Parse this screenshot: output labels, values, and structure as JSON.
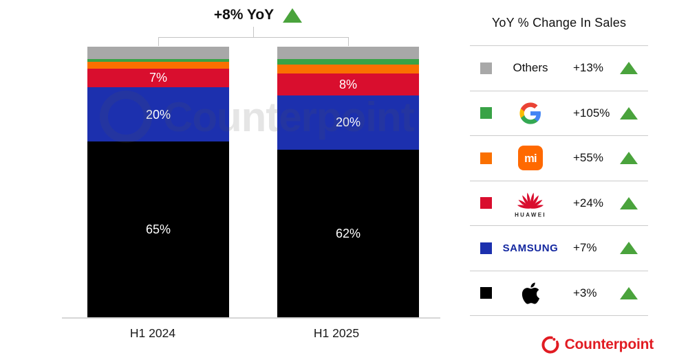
{
  "header": {
    "growth_label": "+8% YoY",
    "growth_direction": "up"
  },
  "watermark": {
    "text": "Counterpoint"
  },
  "footer": {
    "brand": "Counterpoint"
  },
  "colors": {
    "up_green": "#4aa33c",
    "bracket_line": "#c4c4c4",
    "counterpoint_red": "#e11b22",
    "samsung_blue": "#1428a0",
    "huawei_red": "#d90e2e",
    "mi_orange": "#ff6900",
    "google_blue": "#4285F4",
    "google_green": "#34A853",
    "google_yellow": "#FBBC05",
    "google_red": "#EA4335"
  },
  "legend": {
    "title": "YoY % Change In Sales",
    "rows": [
      {
        "brand": "Others",
        "change": "+13%",
        "direction": "up",
        "series": "Others"
      },
      {
        "brand": "Google",
        "change": "+105%",
        "direction": "up",
        "series": "Google"
      },
      {
        "brand": "Xiaomi",
        "change": "+55%",
        "direction": "up",
        "series": "Xiaomi",
        "logo_text": "mi"
      },
      {
        "brand": "Huawei",
        "change": "+24%",
        "direction": "up",
        "series": "Huawei",
        "wordmark": "HUAWEI"
      },
      {
        "brand": "Samsung",
        "change": "+7%",
        "direction": "up",
        "series": "Samsung",
        "wordmark": "SAMSUNG"
      },
      {
        "brand": "Apple",
        "change": "+3%",
        "direction": "up",
        "series": "Apple"
      }
    ]
  },
  "chart_data": {
    "type": "bar",
    "stacked": true,
    "title": "+8% YoY",
    "unit": "% share of sales",
    "categories": [
      "H1 2024",
      "H1 2025"
    ],
    "ylim": [
      0,
      100
    ],
    "legend_position": "right",
    "grid": false,
    "series": [
      {
        "name": "Apple",
        "color": "#000000",
        "values": [
          65,
          62
        ],
        "labels": [
          "65%",
          "62%"
        ]
      },
      {
        "name": "Samsung",
        "color": "#1c30ae",
        "values": [
          20,
          20
        ],
        "labels": [
          "20%",
          "20%"
        ]
      },
      {
        "name": "Huawei",
        "color": "#d90e2e",
        "values": [
          7,
          8
        ],
        "labels": [
          "7%",
          "8%"
        ]
      },
      {
        "name": "Xiaomi",
        "color": "#fa7000",
        "values": [
          2.5,
          3.5
        ],
        "labels": [
          "",
          ""
        ]
      },
      {
        "name": "Google",
        "color": "#38a246",
        "values": [
          1,
          2
        ],
        "labels": [
          "",
          ""
        ]
      },
      {
        "name": "Others",
        "color": "#a8a8a8",
        "values": [
          4.5,
          4.5
        ],
        "labels": [
          "",
          ""
        ]
      }
    ]
  }
}
